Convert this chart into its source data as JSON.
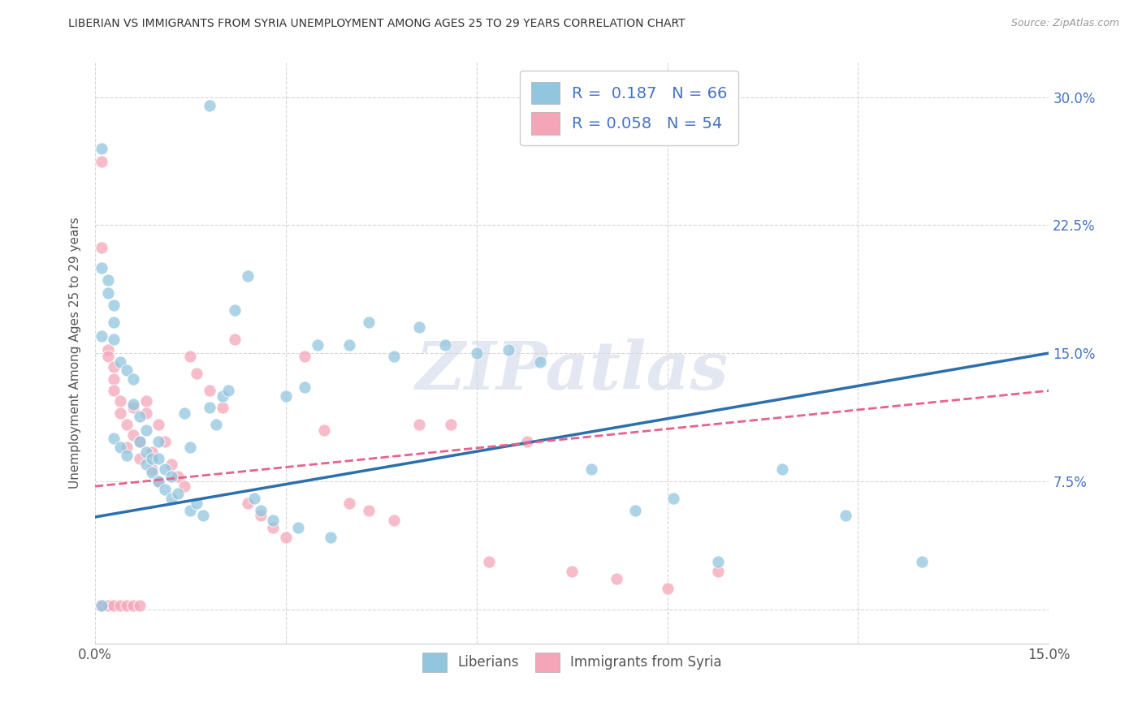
{
  "title": "LIBERIAN VS IMMIGRANTS FROM SYRIA UNEMPLOYMENT AMONG AGES 25 TO 29 YEARS CORRELATION CHART",
  "source": "Source: ZipAtlas.com",
  "ylabel": "Unemployment Among Ages 25 to 29 years",
  "xlim": [
    0.0,
    0.15
  ],
  "ylim": [
    -0.02,
    0.32
  ],
  "blue_color": "#92c5de",
  "pink_color": "#f4a6b8",
  "blue_line_color": "#2c6fad",
  "pink_line_color": "#e8628a",
  "watermark": "ZIPatlas",
  "blue_scatter_x": [
    0.018,
    0.001,
    0.001,
    0.001,
    0.002,
    0.002,
    0.003,
    0.003,
    0.003,
    0.003,
    0.004,
    0.004,
    0.005,
    0.005,
    0.006,
    0.006,
    0.007,
    0.007,
    0.008,
    0.008,
    0.008,
    0.009,
    0.009,
    0.01,
    0.01,
    0.01,
    0.011,
    0.011,
    0.012,
    0.012,
    0.013,
    0.014,
    0.015,
    0.015,
    0.016,
    0.017,
    0.018,
    0.019,
    0.02,
    0.021,
    0.022,
    0.024,
    0.025,
    0.026,
    0.028,
    0.03,
    0.032,
    0.033,
    0.035,
    0.037,
    0.04,
    0.043,
    0.047,
    0.051,
    0.055,
    0.06,
    0.065,
    0.07,
    0.078,
    0.085,
    0.091,
    0.098,
    0.108,
    0.118,
    0.13,
    0.001
  ],
  "blue_scatter_y": [
    0.295,
    0.27,
    0.2,
    0.16,
    0.193,
    0.185,
    0.178,
    0.168,
    0.158,
    0.1,
    0.145,
    0.095,
    0.09,
    0.14,
    0.135,
    0.12,
    0.113,
    0.098,
    0.105,
    0.092,
    0.085,
    0.088,
    0.08,
    0.098,
    0.088,
    0.075,
    0.082,
    0.07,
    0.078,
    0.065,
    0.068,
    0.115,
    0.095,
    0.058,
    0.062,
    0.055,
    0.118,
    0.108,
    0.125,
    0.128,
    0.175,
    0.195,
    0.065,
    0.058,
    0.052,
    0.125,
    0.048,
    0.13,
    0.155,
    0.042,
    0.155,
    0.168,
    0.148,
    0.165,
    0.155,
    0.15,
    0.152,
    0.145,
    0.082,
    0.058,
    0.065,
    0.028,
    0.082,
    0.055,
    0.028,
    0.002
  ],
  "pink_scatter_x": [
    0.001,
    0.001,
    0.002,
    0.002,
    0.003,
    0.003,
    0.003,
    0.004,
    0.004,
    0.005,
    0.005,
    0.006,
    0.006,
    0.007,
    0.007,
    0.008,
    0.008,
    0.009,
    0.009,
    0.01,
    0.01,
    0.011,
    0.012,
    0.013,
    0.014,
    0.015,
    0.016,
    0.018,
    0.02,
    0.022,
    0.024,
    0.026,
    0.028,
    0.03,
    0.033,
    0.036,
    0.04,
    0.043,
    0.047,
    0.051,
    0.056,
    0.062,
    0.068,
    0.075,
    0.082,
    0.09,
    0.098,
    0.001,
    0.002,
    0.003,
    0.004,
    0.005,
    0.006,
    0.007
  ],
  "pink_scatter_y": [
    0.262,
    0.212,
    0.152,
    0.148,
    0.142,
    0.135,
    0.128,
    0.122,
    0.115,
    0.108,
    0.095,
    0.118,
    0.102,
    0.098,
    0.088,
    0.122,
    0.115,
    0.092,
    0.082,
    0.108,
    0.075,
    0.098,
    0.085,
    0.078,
    0.072,
    0.148,
    0.138,
    0.128,
    0.118,
    0.158,
    0.062,
    0.055,
    0.048,
    0.042,
    0.148,
    0.105,
    0.062,
    0.058,
    0.052,
    0.108,
    0.108,
    0.028,
    0.098,
    0.022,
    0.018,
    0.012,
    0.022,
    0.002,
    0.002,
    0.002,
    0.002,
    0.002,
    0.002,
    0.002
  ],
  "blue_line_x0": 0.0,
  "blue_line_y0": 0.054,
  "blue_line_x1": 0.15,
  "blue_line_y1": 0.15,
  "pink_line_x0": 0.0,
  "pink_line_y0": 0.072,
  "pink_line_x1": 0.15,
  "pink_line_y1": 0.128,
  "background_color": "#ffffff",
  "grid_color": "#cccccc"
}
